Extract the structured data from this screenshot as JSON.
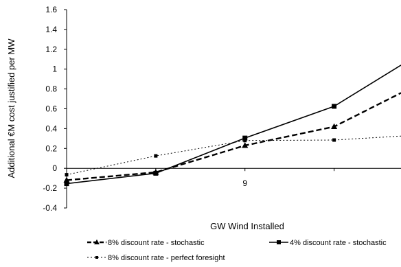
{
  "chart_data": {
    "type": "line",
    "xlabel": "GW Wind Installed",
    "ylabel": "Additional €M cost justified per MW",
    "x_tick_labels": [
      {
        "value": 9,
        "label": "9"
      }
    ],
    "xlim": [
      5,
      12.5
    ],
    "ylim": [
      -0.4,
      1.6
    ],
    "y_ticks": [
      -0.4,
      -0.2,
      0,
      0.2,
      0.4,
      0.6,
      0.8,
      1,
      1.2,
      1.4,
      1.6
    ],
    "y_tick_labels": [
      "-0.4",
      "-0.2",
      "0",
      "0.2",
      "0.4",
      "0.6",
      "0.8",
      "1",
      "1.2",
      "1.4",
      "1.6"
    ],
    "grid": false,
    "legend_position": "bottom",
    "series": [
      {
        "name": "8% discount rate -  stochastic",
        "style": "dashed",
        "marker": "triangle",
        "color": "#000000",
        "x": [
          5,
          7,
          9,
          11,
          12.5
        ],
        "y": [
          -0.12,
          -0.04,
          0.23,
          0.42,
          0.76
        ]
      },
      {
        "name": "4% discount rate -  stochastic",
        "style": "solid",
        "marker": "square",
        "color": "#000000",
        "x": [
          5,
          7,
          9,
          11,
          12.5
        ],
        "y": [
          -0.155,
          -0.05,
          0.305,
          0.625,
          1.04
        ]
      },
      {
        "name": "8% discount rate -  perfect foresight",
        "style": "dotted",
        "marker": "square",
        "color": "#000000",
        "x": [
          5,
          7,
          9,
          11,
          12.5
        ],
        "y": [
          -0.065,
          0.125,
          0.28,
          0.285,
          0.325
        ]
      }
    ]
  }
}
